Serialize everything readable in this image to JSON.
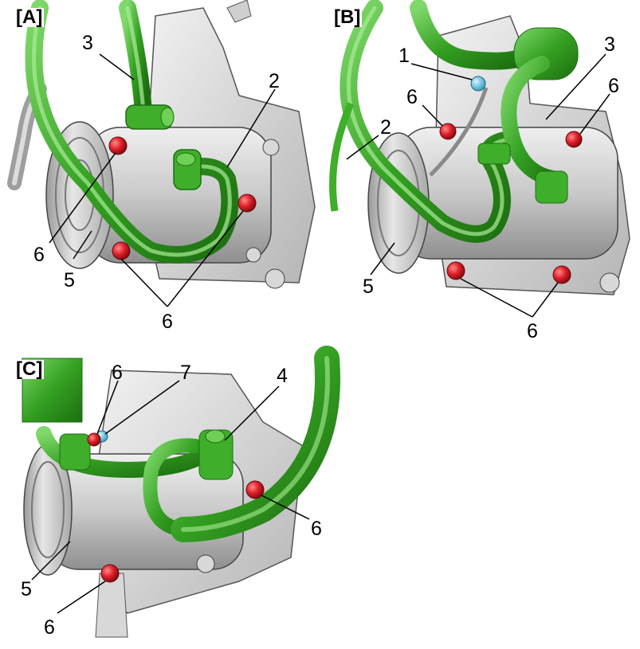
{
  "panels": [
    {
      "tag": "[A]",
      "callouts": [
        "3",
        "2",
        "6",
        "5",
        "6"
      ]
    },
    {
      "tag": "[B]",
      "callouts": [
        "1",
        "3",
        "6",
        "6",
        "2",
        "5",
        "6"
      ]
    },
    {
      "tag": "[C]",
      "callouts": [
        "6",
        "7",
        "4",
        "6",
        "5",
        "6"
      ]
    }
  ],
  "colors": {
    "hose": "#3fae2a",
    "hose_dark": "#1f7a12",
    "hose_light": "#8fe07a",
    "bolt": "#e0202a",
    "bolt_dark": "#8c0a10",
    "sensor": "#5bc8e8",
    "compressor": "#cfcfcf",
    "compressor_dark": "#8a8a8a",
    "leader": "#000000"
  },
  "icons": [
    "compressor-illustration",
    "hose-illustration",
    "bolt-illustration",
    "sensor-illustration"
  ]
}
